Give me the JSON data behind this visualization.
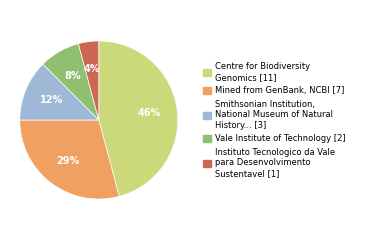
{
  "labels": [
    "Centre for Biodiversity\nGenomics [11]",
    "Mined from GenBank, NCBI [7]",
    "Smithsonian Institution,\nNational Museum of Natural\nHistory... [3]",
    "Vale Institute of Technology [2]",
    "Instituto Tecnologico da Vale\npara Desenvolvimento\nSustentavel [1]"
  ],
  "values": [
    11,
    7,
    3,
    2,
    1
  ],
  "colors": [
    "#ccd97a",
    "#f0a060",
    "#a0b8d8",
    "#8fc070",
    "#cc6655"
  ],
  "startangle": 90,
  "background_color": "#ffffff",
  "pie_fontsize": 7,
  "legend_fontsize": 6.0
}
